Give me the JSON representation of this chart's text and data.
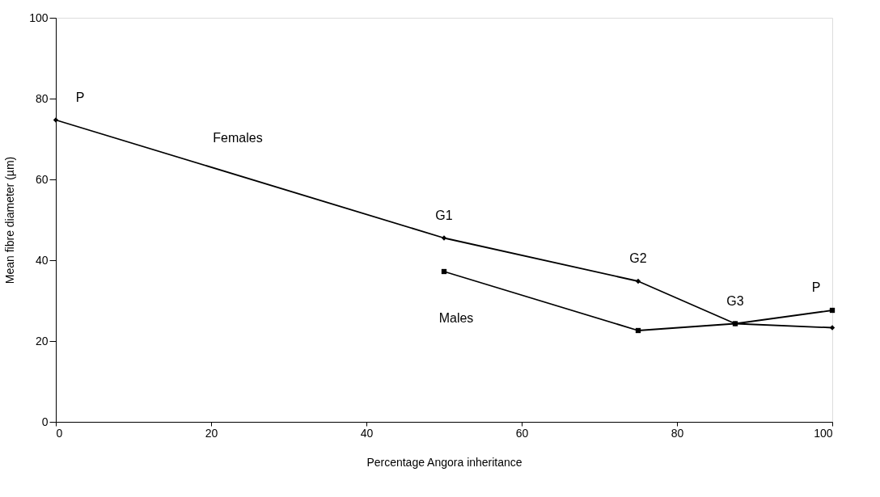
{
  "chart_data": {
    "type": "line",
    "xlabel": "Percentage Angora inheritance",
    "ylabel": "Mean fibre diameter (µm)",
    "xlim": [
      0,
      100
    ],
    "xticks": [
      0,
      20,
      40,
      60,
      80,
      100
    ],
    "ylim": [
      0,
      100
    ],
    "yticks": [
      0,
      20,
      40,
      60,
      80,
      100
    ],
    "grid": false,
    "legend": false,
    "series": [
      {
        "name": "Females",
        "color": "#000000",
        "marker": "diamond",
        "x": [
          0,
          50,
          75,
          87.5,
          100
        ],
        "values": [
          74.7,
          45.5,
          34.8,
          24.3,
          23.3
        ]
      },
      {
        "name": "Males",
        "color": "#000000",
        "marker": "square",
        "x": [
          50,
          75,
          87.5,
          100
        ],
        "values": [
          37.2,
          22.6,
          24.3,
          27.6
        ]
      }
    ],
    "annotations": [
      "P",
      "G1",
      "G2",
      "G3",
      "P"
    ]
  }
}
